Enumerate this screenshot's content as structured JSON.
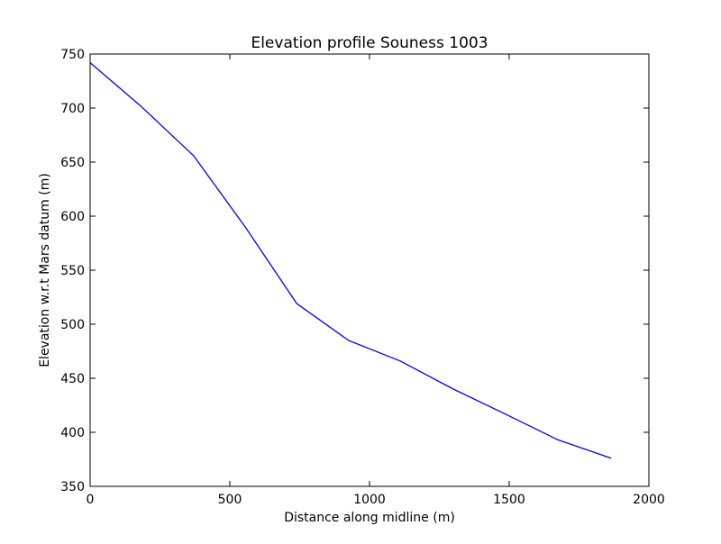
{
  "chart_data": {
    "type": "line",
    "title": "Elevation profile Souness 1003",
    "xlabel": "Distance along midline (m)",
    "ylabel": "Elevation w.r.t Mars datum (m)",
    "xlim": [
      0,
      2000
    ],
    "ylim": [
      350,
      750
    ],
    "xticks": [
      "0",
      "500",
      "1000",
      "1500",
      "2000"
    ],
    "yticks": [
      "350",
      "400",
      "450",
      "500",
      "550",
      "600",
      "650",
      "700",
      "750"
    ],
    "grid": false,
    "series": [
      {
        "color": "#0000ff",
        "x": [
          0,
          185,
          370,
          555,
          740,
          925,
          1110,
          1300,
          1485,
          1675,
          1865
        ],
        "y": [
          742,
          701,
          656,
          590,
          519,
          485,
          466,
          440,
          417,
          393,
          376
        ]
      }
    ]
  }
}
